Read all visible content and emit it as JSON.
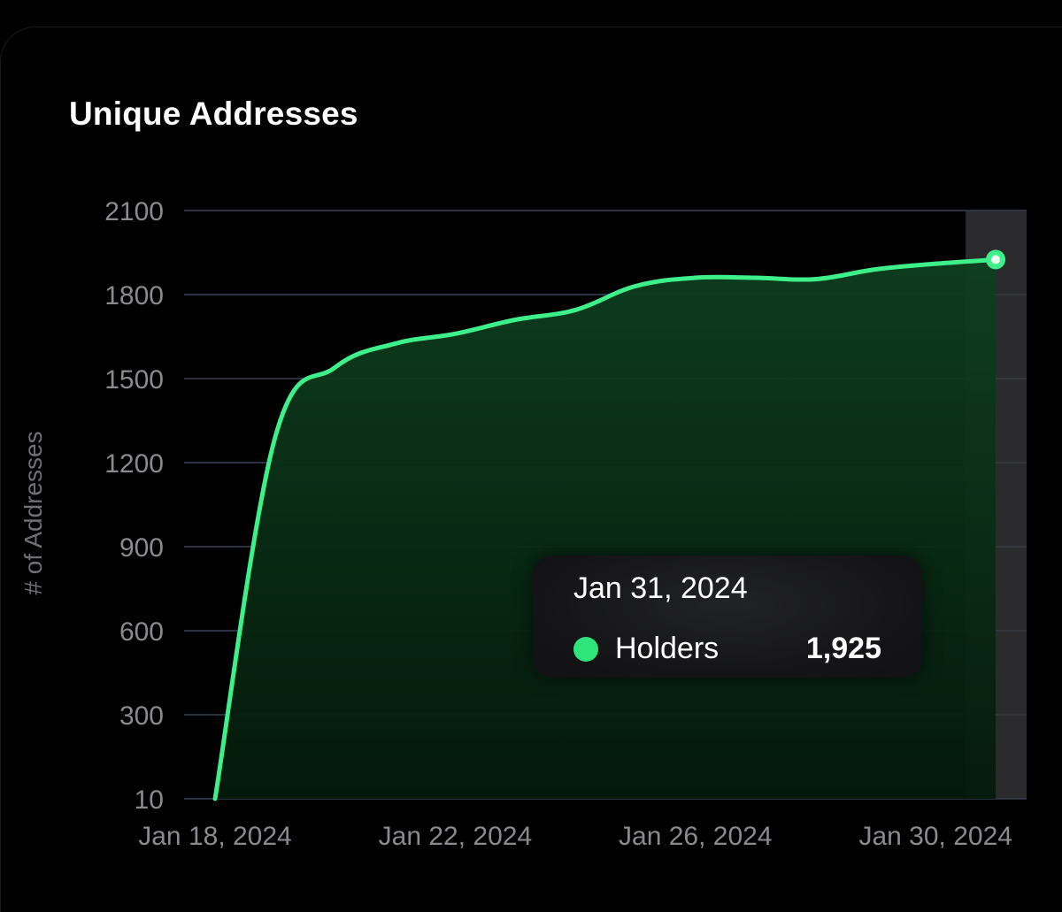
{
  "title": "Unique Addresses",
  "colors": {
    "background": "#000000",
    "line": "#3ef08a",
    "fill": "#0b3a1c",
    "grid": "#2a3140",
    "axis_text": "#8a8a8f",
    "highlight": "#3a3a3e"
  },
  "chart_data": {
    "type": "area",
    "title": "Unique Addresses",
    "xlabel": "",
    "ylabel": "# of Addresses",
    "y_ticks": [
      10,
      300,
      600,
      900,
      1200,
      1500,
      1800,
      2100
    ],
    "x_ticks": [
      "Jan 18, 2024",
      "Jan 22, 2024",
      "Jan 26, 2024",
      "Jan 30, 2024"
    ],
    "grid": true,
    "legend": "none",
    "series": [
      {
        "name": "Holders",
        "x": [
          "2024-01-18",
          "2024-01-19",
          "2024-01-20",
          "2024-01-21",
          "2024-01-22",
          "2024-01-23",
          "2024-01-24",
          "2024-01-25",
          "2024-01-26",
          "2024-01-27",
          "2024-01-28",
          "2024-01-29",
          "2024-01-30",
          "2024-01-31"
        ],
        "values": [
          10,
          1290,
          1540,
          1625,
          1660,
          1710,
          1745,
          1830,
          1860,
          1860,
          1855,
          1890,
          1910,
          1925
        ]
      }
    ],
    "highlight": {
      "date": "Jan 31, 2024",
      "series": "Holders",
      "value": "1,925"
    }
  }
}
